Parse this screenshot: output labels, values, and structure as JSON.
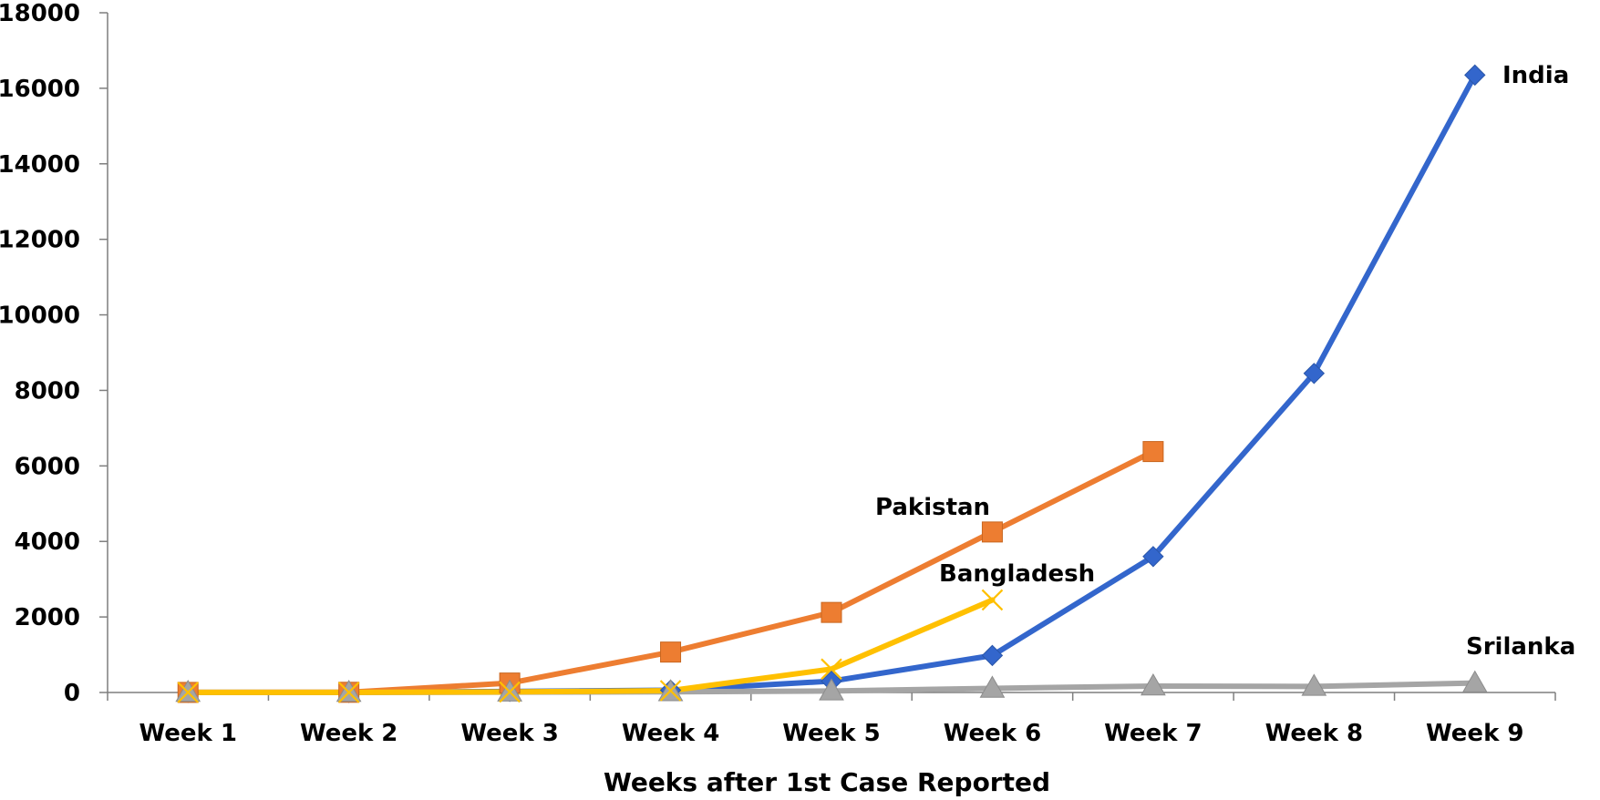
{
  "chart_data": {
    "type": "line",
    "xlabel": "Weeks after 1st Case Reported",
    "ylabel": "",
    "categories": [
      "Week 1",
      "Week 2",
      "Week 3",
      "Week 4",
      "Week 5",
      "Week 6",
      "Week 7",
      "Week 8",
      "Week 9"
    ],
    "ylim": [
      0,
      18000
    ],
    "yticks": [
      0,
      2000,
      4000,
      6000,
      8000,
      10000,
      12000,
      14000,
      16000,
      18000
    ],
    "grid": false,
    "legend": "none",
    "series": [
      {
        "name": "India",
        "color": "#3366cc",
        "marker": "diamond",
        "values": [
          3,
          3,
          28,
          60,
          300,
          980,
          3600,
          8450,
          16350
        ]
      },
      {
        "name": "Pakistan",
        "color": "#ed7d31",
        "marker": "square",
        "values": [
          2,
          5,
          250,
          1070,
          2120,
          4250,
          6380,
          null,
          null
        ]
      },
      {
        "name": "Bangladesh",
        "color": "#ffc000",
        "marker": "x",
        "values": [
          3,
          3,
          14,
          48,
          620,
          2450,
          null,
          null,
          null
        ]
      },
      {
        "name": "Srilanka",
        "color": "#a5a5a5",
        "marker": "triangle",
        "values": [
          1,
          1,
          10,
          18,
          40,
          110,
          170,
          160,
          250
        ]
      }
    ]
  }
}
